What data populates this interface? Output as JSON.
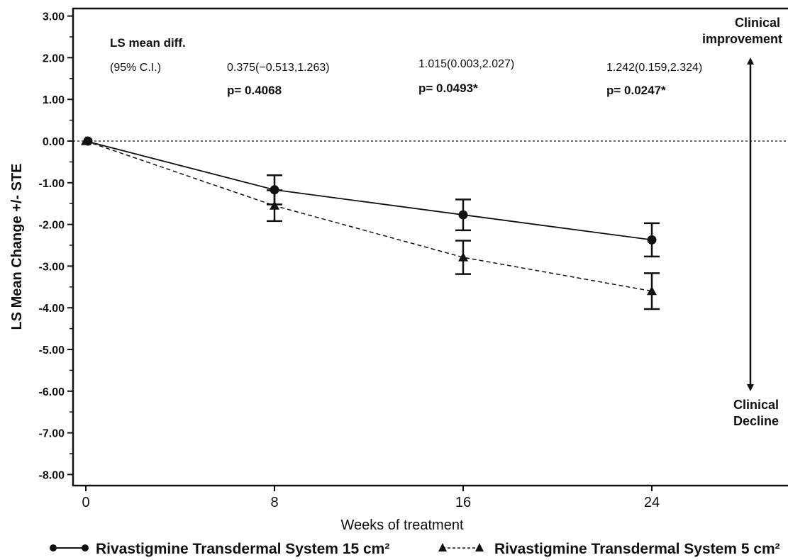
{
  "chart_data": {
    "type": "line",
    "ylabel": "LS Mean Change +/- STE",
    "xlabel": "Weeks of treatment",
    "x": [
      0,
      8,
      16,
      24
    ],
    "xticks": [
      "0",
      "8",
      "16",
      "24"
    ],
    "xlim": [
      -0.5,
      29.5
    ],
    "ylim": [
      -8.2,
      3.1
    ],
    "yticks": [
      "3.00",
      "2.00",
      "1.00",
      "0.00",
      "-1.00",
      "-2.00",
      "-3.00",
      "-4.00",
      "-5.00",
      "-6.00",
      "-7.00",
      "-8.00"
    ],
    "ytick_values": [
      3,
      2,
      1,
      0,
      -1,
      -2,
      -3,
      -4,
      -5,
      -6,
      -7,
      -8
    ],
    "reference_line": 0,
    "series": [
      {
        "name": "Rivastigmine Transdermal System 15 cm²",
        "marker": "circle",
        "line": "solid",
        "values": [
          0,
          -1.17,
          -1.77,
          -2.37
        ],
        "ste": [
          0,
          0.35,
          0.37,
          0.4
        ]
      },
      {
        "name": "Rivastigmine Transdermal System 5 cm²",
        "marker": "triangle",
        "line": "dashed",
        "values": [
          0,
          -1.55,
          -2.79,
          -3.6
        ],
        "ste": [
          0,
          0.37,
          0.4,
          0.43
        ]
      }
    ],
    "annotations": {
      "header_line1": "LS mean diff.",
      "header_line2": "(95% C.I.)",
      "ci": [
        "0.375(−0.513,1.263)",
        "1.015(0.003,2.027)",
        "1.242(0.159,2.324)"
      ],
      "p": [
        "p= 0.4068",
        "p= 0.0493*",
        "p= 0.0247*"
      ],
      "improvement_line1": "Clinical",
      "improvement_line2": "improvement",
      "decline_line1": "Clinical",
      "decline_line2": "Decline"
    },
    "legend_position": "bottom",
    "grid": false
  }
}
